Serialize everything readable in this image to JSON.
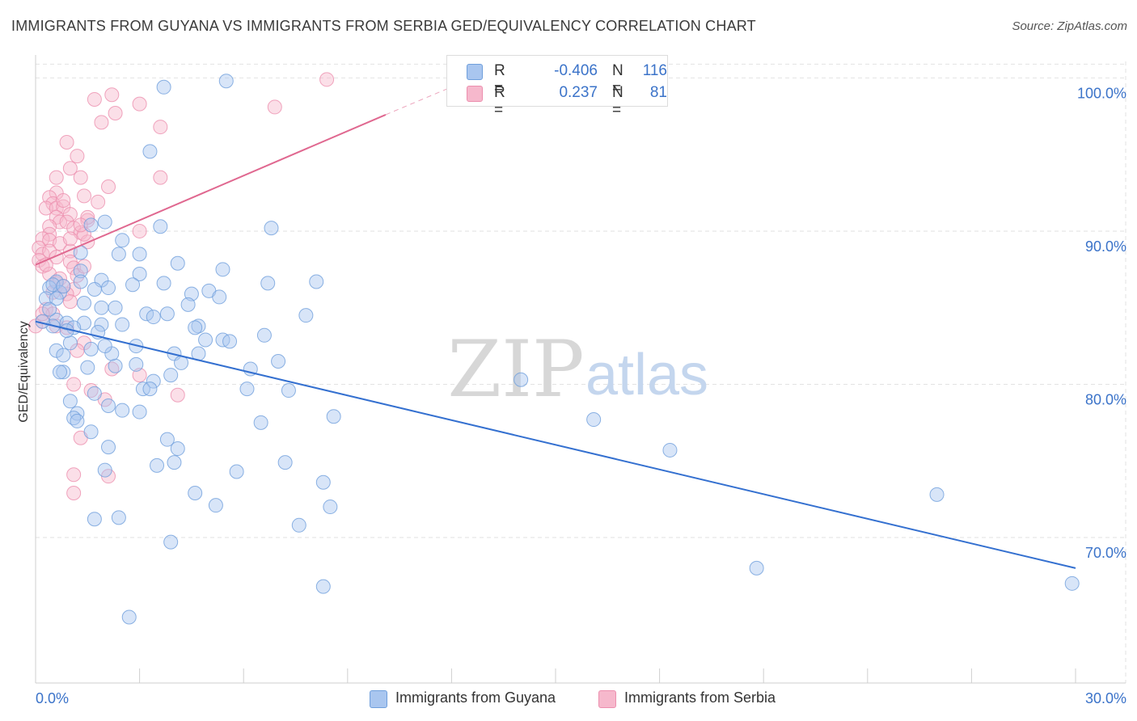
{
  "title": "IMMIGRANTS FROM GUYANA VS IMMIGRANTS FROM SERBIA GED/EQUIVALENCY CORRELATION CHART",
  "source": "Source: ZipAtlas.com",
  "watermark": {
    "zip": "ZIP",
    "atlas": "atlas"
  },
  "legend_top": {
    "rows": [
      {
        "r_label": "R =",
        "r_value": "-0.406",
        "n_label": "N =",
        "n_value": "116",
        "color": "#a9c6ef"
      },
      {
        "r_label": "R =",
        "r_value": "0.237",
        "n_label": "N =",
        "n_value": "81",
        "color": "#f6b8cc"
      }
    ]
  },
  "legend_bottom": [
    {
      "label": "Immigrants from Guyana",
      "color": "#a9c6ef"
    },
    {
      "label": "Immigrants from Serbia",
      "color": "#f6b8cc"
    }
  ],
  "chart_data": {
    "type": "scatter",
    "title": "IMMIGRANTS FROM GUYANA VS IMMIGRANTS FROM SERBIA GED/EQUIVALENCY CORRELATION CHART",
    "xlabel": "",
    "ylabel": "GED/Equivalency",
    "xlim": [
      0,
      30
    ],
    "ylim": [
      60.5,
      101.5
    ],
    "x_tick_labels": [
      {
        "value": 0,
        "label": "0.0%"
      },
      {
        "value": 30,
        "label": "30.0%"
      }
    ],
    "x_minor_ticks": [
      0,
      3,
      6,
      9,
      12,
      15,
      18,
      21,
      24,
      27,
      30
    ],
    "y_ticks": [
      {
        "value": 70,
        "label": "70.0%"
      },
      {
        "value": 80,
        "label": "80.0%"
      },
      {
        "value": 90,
        "label": "90.0%"
      },
      {
        "value": 100,
        "label": "100.0%"
      }
    ],
    "grid": true,
    "colors": {
      "guyana_fill": "#a9c6ef",
      "guyana_stroke": "#6f9fdc",
      "guyana_line": "#3470d0",
      "serbia_fill": "#f6b8cc",
      "serbia_stroke": "#ec8fae",
      "serbia_line": "#e06890"
    },
    "series": [
      {
        "name": "Immigrants from Guyana",
        "trend": {
          "x": [
            0,
            30
          ],
          "y": [
            84.1,
            68.0
          ]
        },
        "points": [
          [
            3.7,
            99.4
          ],
          [
            5.5,
            99.8
          ],
          [
            3.3,
            95.2
          ],
          [
            2.0,
            90.6
          ],
          [
            1.6,
            90.4
          ],
          [
            3.6,
            90.3
          ],
          [
            6.8,
            90.2
          ],
          [
            2.5,
            89.4
          ],
          [
            2.4,
            88.5
          ],
          [
            3.0,
            88.5
          ],
          [
            1.3,
            88.6
          ],
          [
            4.1,
            87.9
          ],
          [
            5.4,
            87.5
          ],
          [
            1.3,
            87.4
          ],
          [
            3.0,
            87.2
          ],
          [
            0.6,
            86.7
          ],
          [
            1.9,
            86.8
          ],
          [
            1.3,
            86.7
          ],
          [
            3.7,
            86.6
          ],
          [
            6.7,
            86.6
          ],
          [
            8.1,
            86.7
          ],
          [
            0.4,
            86.3
          ],
          [
            0.7,
            86.0
          ],
          [
            1.7,
            86.2
          ],
          [
            2.1,
            86.3
          ],
          [
            5.0,
            86.1
          ],
          [
            4.5,
            85.9
          ],
          [
            5.3,
            85.7
          ],
          [
            0.3,
            85.6
          ],
          [
            0.6,
            85.6
          ],
          [
            2.3,
            85.0
          ],
          [
            1.9,
            85.0
          ],
          [
            3.2,
            84.6
          ],
          [
            3.4,
            84.4
          ],
          [
            3.8,
            84.6
          ],
          [
            7.8,
            84.5
          ],
          [
            0.6,
            84.2
          ],
          [
            0.9,
            84.0
          ],
          [
            1.4,
            84.0
          ],
          [
            0.5,
            83.8
          ],
          [
            1.1,
            83.7
          ],
          [
            1.9,
            83.9
          ],
          [
            2.5,
            83.9
          ],
          [
            4.7,
            83.8
          ],
          [
            4.6,
            83.7
          ],
          [
            1.8,
            83.4
          ],
          [
            6.6,
            83.2
          ],
          [
            4.9,
            82.9
          ],
          [
            5.4,
            82.9
          ],
          [
            1.0,
            82.7
          ],
          [
            2.9,
            82.5
          ],
          [
            0.6,
            82.2
          ],
          [
            1.6,
            82.3
          ],
          [
            4.0,
            82.0
          ],
          [
            4.7,
            82.0
          ],
          [
            0.8,
            81.9
          ],
          [
            4.2,
            81.4
          ],
          [
            2.3,
            81.2
          ],
          [
            2.9,
            81.3
          ],
          [
            6.2,
            81.0
          ],
          [
            0.8,
            80.8
          ],
          [
            0.7,
            80.8
          ],
          [
            3.4,
            80.2
          ],
          [
            3.1,
            79.7
          ],
          [
            6.1,
            79.7
          ],
          [
            7.3,
            79.6
          ],
          [
            1.7,
            79.4
          ],
          [
            3.3,
            79.7
          ],
          [
            1.0,
            78.9
          ],
          [
            2.1,
            78.6
          ],
          [
            14.0,
            80.3
          ],
          [
            1.2,
            78.1
          ],
          [
            1.1,
            77.8
          ],
          [
            2.5,
            78.3
          ],
          [
            3.0,
            78.2
          ],
          [
            8.6,
            77.9
          ],
          [
            6.5,
            77.5
          ],
          [
            16.1,
            77.7
          ],
          [
            1.2,
            77.6
          ],
          [
            3.8,
            76.4
          ],
          [
            2.1,
            75.9
          ],
          [
            4.1,
            75.8
          ],
          [
            18.3,
            75.7
          ],
          [
            7.2,
            74.9
          ],
          [
            4.0,
            74.9
          ],
          [
            3.5,
            74.7
          ],
          [
            2.0,
            74.4
          ],
          [
            5.8,
            74.3
          ],
          [
            8.3,
            73.6
          ],
          [
            4.6,
            72.9
          ],
          [
            26.0,
            72.8
          ],
          [
            5.2,
            72.1
          ],
          [
            8.5,
            72.0
          ],
          [
            1.7,
            71.2
          ],
          [
            2.4,
            71.3
          ],
          [
            7.6,
            70.8
          ],
          [
            3.9,
            69.7
          ],
          [
            20.8,
            68.0
          ],
          [
            8.3,
            66.8
          ],
          [
            29.9,
            67.0
          ],
          [
            2.7,
            64.8
          ],
          [
            1.5,
            81.1
          ],
          [
            2.2,
            82.0
          ],
          [
            0.9,
            83.5
          ],
          [
            5.6,
            82.8
          ],
          [
            1.4,
            85.3
          ],
          [
            0.4,
            84.9
          ],
          [
            2.8,
            86.5
          ],
          [
            0.5,
            86.5
          ],
          [
            3.9,
            80.6
          ],
          [
            7.0,
            81.5
          ],
          [
            1.6,
            76.9
          ],
          [
            0.2,
            84.1
          ],
          [
            2.0,
            82.5
          ],
          [
            4.4,
            85.2
          ],
          [
            0.8,
            86.4
          ]
        ]
      },
      {
        "name": "Immigrants from Serbia",
        "trend": {
          "x": [
            0,
            10.1
          ],
          "y": [
            87.8,
            97.6
          ]
        },
        "trend_dashed": {
          "x": [
            10.1,
            12.2
          ],
          "y": [
            97.6,
            99.6
          ]
        },
        "points": [
          [
            8.4,
            99.9
          ],
          [
            2.2,
            98.9
          ],
          [
            1.7,
            98.6
          ],
          [
            3.0,
            98.3
          ],
          [
            6.9,
            98.1
          ],
          [
            2.3,
            97.7
          ],
          [
            1.9,
            97.1
          ],
          [
            3.6,
            96.8
          ],
          [
            0.9,
            95.8
          ],
          [
            1.2,
            94.9
          ],
          [
            1.0,
            94.1
          ],
          [
            0.6,
            93.5
          ],
          [
            1.3,
            93.5
          ],
          [
            3.6,
            93.5
          ],
          [
            2.1,
            92.9
          ],
          [
            0.6,
            92.5
          ],
          [
            1.4,
            92.3
          ],
          [
            0.4,
            92.2
          ],
          [
            0.5,
            91.8
          ],
          [
            1.8,
            91.9
          ],
          [
            0.3,
            91.5
          ],
          [
            0.6,
            91.5
          ],
          [
            0.8,
            91.6
          ],
          [
            1.0,
            91.1
          ],
          [
            0.6,
            90.9
          ],
          [
            0.7,
            90.6
          ],
          [
            0.9,
            90.6
          ],
          [
            1.5,
            90.7
          ],
          [
            0.4,
            90.3
          ],
          [
            1.1,
            90.2
          ],
          [
            0.4,
            89.8
          ],
          [
            1.3,
            89.9
          ],
          [
            3.0,
            90.0
          ],
          [
            0.2,
            89.5
          ],
          [
            0.4,
            89.4
          ],
          [
            0.7,
            89.2
          ],
          [
            1.5,
            89.3
          ],
          [
            0.1,
            88.9
          ],
          [
            0.2,
            88.5
          ],
          [
            0.4,
            88.7
          ],
          [
            1.0,
            88.7
          ],
          [
            0.1,
            88.1
          ],
          [
            0.6,
            88.3
          ],
          [
            1.0,
            88.0
          ],
          [
            0.2,
            87.7
          ],
          [
            1.1,
            87.6
          ],
          [
            0.4,
            87.2
          ],
          [
            1.2,
            87.1
          ],
          [
            0.6,
            86.6
          ],
          [
            1.1,
            86.2
          ],
          [
            0.5,
            86.0
          ],
          [
            0.9,
            85.9
          ],
          [
            1.0,
            85.4
          ],
          [
            0.3,
            84.9
          ],
          [
            0.5,
            84.6
          ],
          [
            0.2,
            84.1
          ],
          [
            0.6,
            83.8
          ],
          [
            0.9,
            83.7
          ],
          [
            0.0,
            83.8
          ],
          [
            1.4,
            82.7
          ],
          [
            1.2,
            82.2
          ],
          [
            2.2,
            81.0
          ],
          [
            3.0,
            80.6
          ],
          [
            1.1,
            80.0
          ],
          [
            1.6,
            79.6
          ],
          [
            4.1,
            79.3
          ],
          [
            2.0,
            79.0
          ],
          [
            1.3,
            76.5
          ],
          [
            2.1,
            74.0
          ],
          [
            1.1,
            74.1
          ],
          [
            1.1,
            72.9
          ],
          [
            1.5,
            90.9
          ],
          [
            1.4,
            89.8
          ],
          [
            0.8,
            92.0
          ],
          [
            0.3,
            87.8
          ],
          [
            0.7,
            86.9
          ],
          [
            1.0,
            89.5
          ],
          [
            1.4,
            87.7
          ],
          [
            0.2,
            84.6
          ],
          [
            0.8,
            86.4
          ],
          [
            1.3,
            90.4
          ]
        ]
      }
    ]
  }
}
